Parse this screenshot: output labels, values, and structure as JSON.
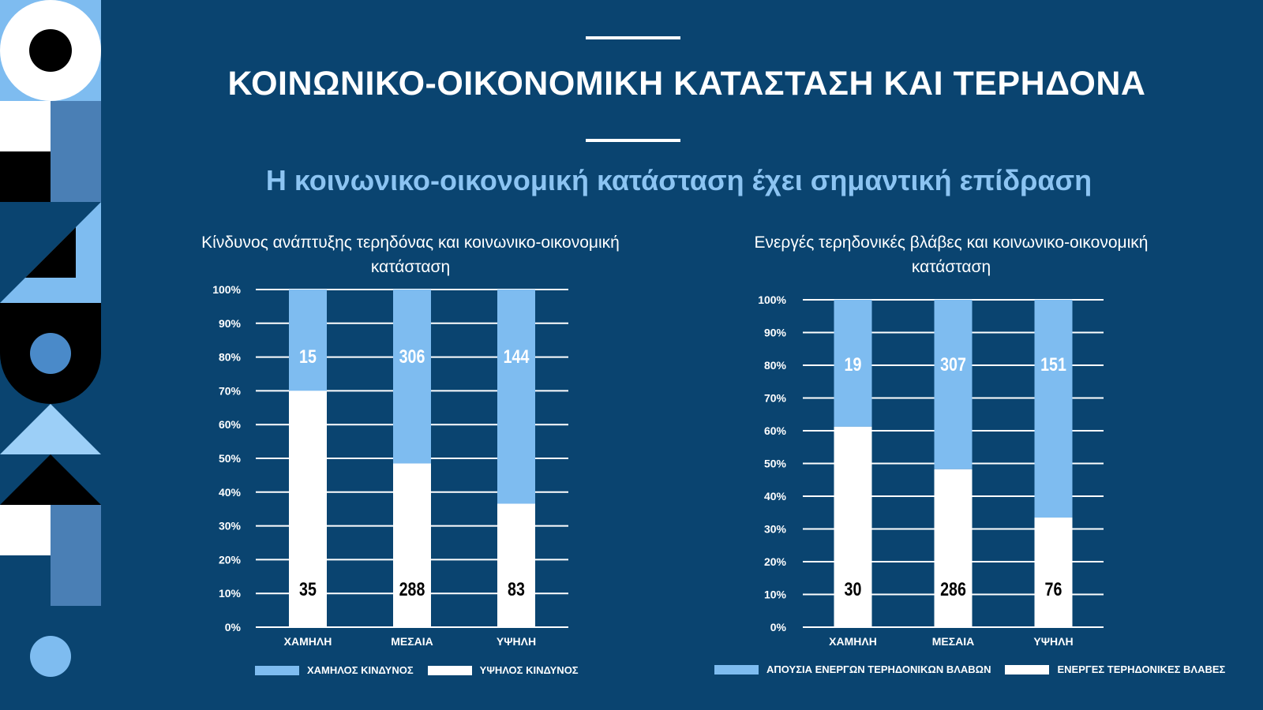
{
  "title": "ΚΟΙΝΩΝΙΚΟ-ΟΙΚΟΝΟΜΙΚΗ ΚΑΤΑΣΤΑΣΗ ΚΑΙ ΤΕΡΗΔΟΝΑ",
  "subtitle": "Η κοινωνικο-οικονομική κατάσταση έχει σημαντική επίδραση",
  "colors": {
    "background": "#0a4470",
    "light_blue": "#7ebcf0",
    "white": "#ffffff",
    "black": "#000000",
    "mid_blue": "#4a7fb5"
  },
  "chart_data": [
    {
      "type": "bar",
      "stacked": "percent",
      "title_line1": "Κίνδυνος  ανάπτυξης τερηδόνας και κοινωνικο-οικονομική",
      "title_line2": "κατάσταση",
      "categories": [
        "ΧΑΜΗΛΗ",
        "ΜΕΣΑΙΑ",
        "ΥΨΗΛΗ"
      ],
      "y_ticks": [
        "0%",
        "10%",
        "20%",
        "30%",
        "40%",
        "50%",
        "60%",
        "70%",
        "80%",
        "90%",
        "100%"
      ],
      "ylim": [
        0,
        100
      ],
      "grid": true,
      "legend_position": "bottom",
      "series": [
        {
          "name": "ΥΨΗΛΟΣ ΚΙΝΔΥΝΟΣ",
          "values": [
            35,
            288,
            83
          ],
          "labels": [
            "35",
            "288",
            "83"
          ],
          "color": "#ffffff"
        },
        {
          "name": "ΧΑΜΗΛΟΣ ΚΙΝΔΥΝΟΣ",
          "values": [
            15,
            306,
            144
          ],
          "labels": [
            "15",
            "306",
            "144"
          ],
          "color": "#7ebcf0"
        }
      ],
      "legend": [
        {
          "name": "ΧΑΜΗΛΟΣ ΚΙΝΔΥΝΟΣ",
          "color": "#7ebcf0"
        },
        {
          "name": "ΥΨΗΛΟΣ ΚΙΝΔΥΝΟΣ",
          "color": "#ffffff"
        }
      ]
    },
    {
      "type": "bar",
      "stacked": "percent",
      "title_line1": "Ενεργές τερηδονικές  βλάβες και κοινωνικο-οικονομική",
      "title_line2": "κατάσταση",
      "categories": [
        "ΧΑΜΗΛΗ",
        "ΜΕΣΑΙΑ",
        "ΥΨΗΛΗ"
      ],
      "y_ticks": [
        "0%",
        "10%",
        "20%",
        "30%",
        "40%",
        "50%",
        "60%",
        "70%",
        "80%",
        "90%",
        "100%"
      ],
      "ylim": [
        0,
        100
      ],
      "grid": true,
      "legend_position": "bottom",
      "series": [
        {
          "name": "ΕΝΕΡΓΕΣ ΤΕΡΗΔΟΝΙΚΕΣ ΒΛΑΒΕΣ",
          "values": [
            30,
            286,
            76
          ],
          "labels": [
            "30",
            "286",
            "76"
          ],
          "color": "#ffffff"
        },
        {
          "name": "ΑΠΟΥΣΙΑ ΕΝΕΡΓΩΝ ΤΕΡΗΔΟΝΙΚΩΝ ΒΛΑΒΩΝ",
          "values": [
            19,
            307,
            151
          ],
          "labels": [
            "19",
            "307",
            "151"
          ],
          "color": "#7ebcf0"
        }
      ],
      "legend": [
        {
          "name": "ΑΠΟΥΣΙΑ ΕΝΕΡΓΩΝ ΤΕΡΗΔΟΝΙΚΩΝ ΒΛΑΒΩΝ",
          "color": "#7ebcf0"
        },
        {
          "name": "ΕΝΕΡΓΕΣ ΤΕΡΗΔΟΝΙΚΕΣ ΒΛΑΒΕΣ",
          "color": "#ffffff"
        }
      ]
    }
  ]
}
